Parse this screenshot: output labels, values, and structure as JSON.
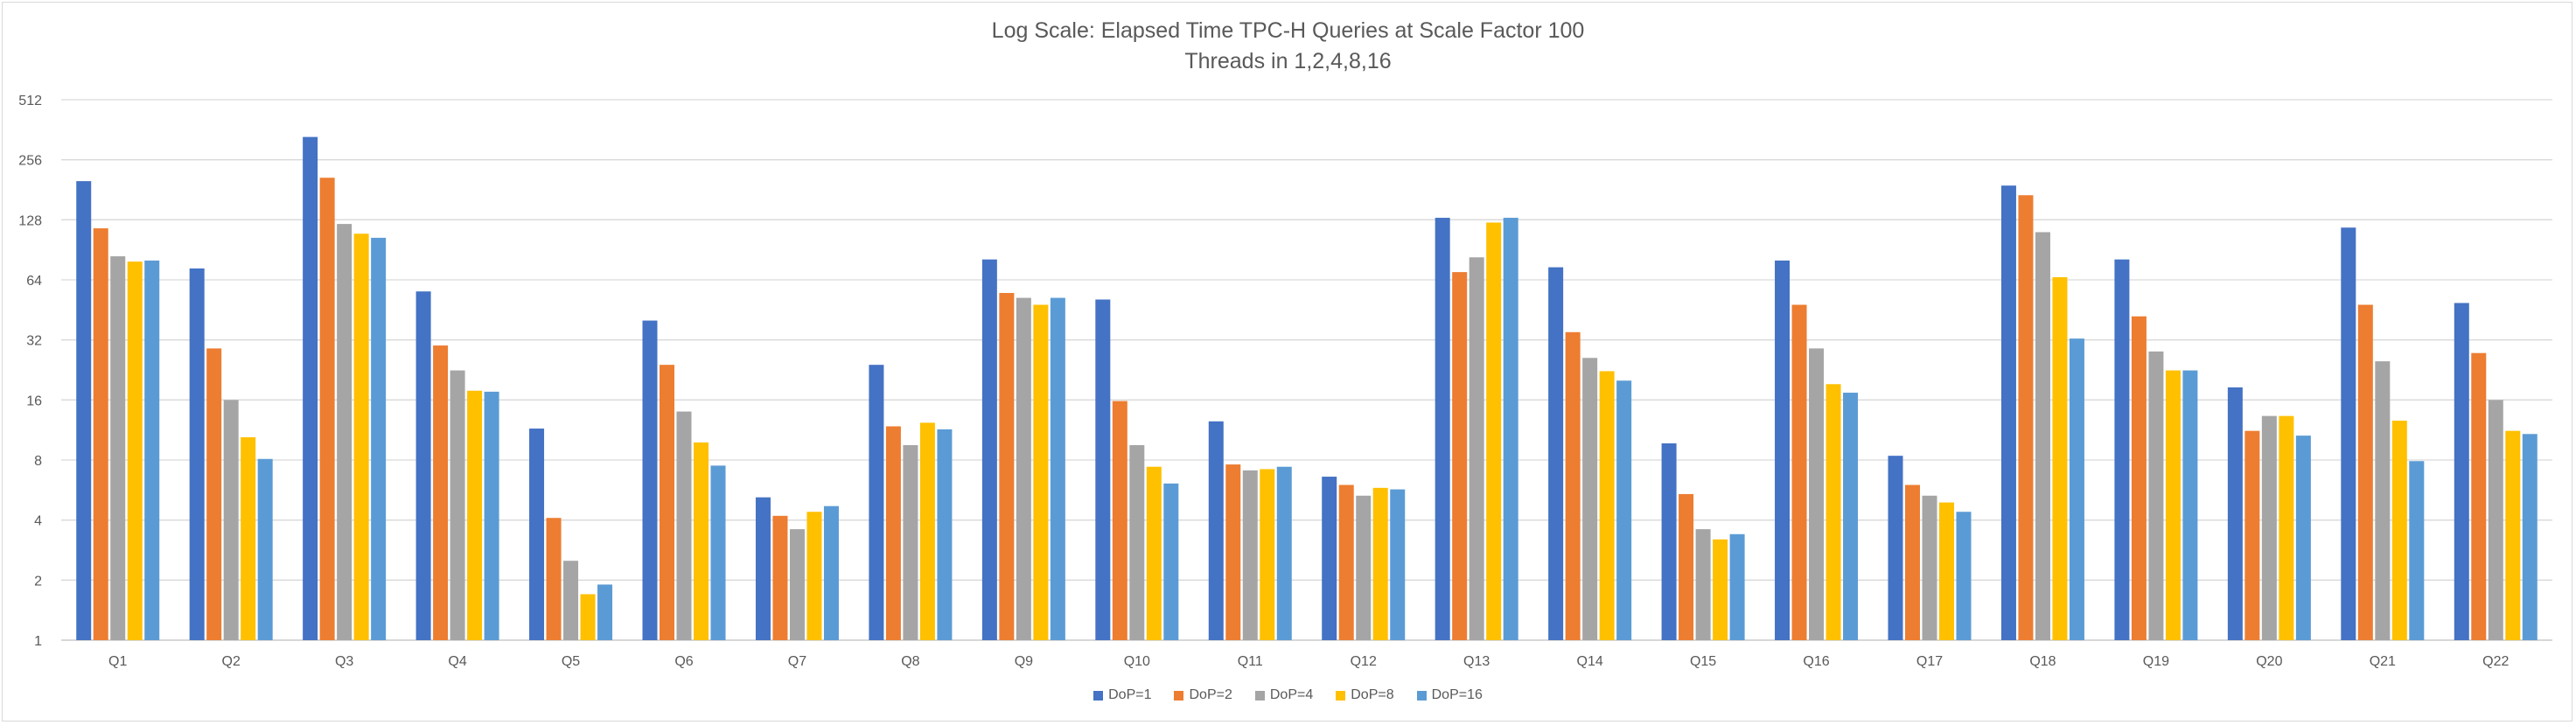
{
  "chart_data": {
    "type": "bar",
    "title": "Log Scale:  Elapsed Time TPC-H Queries at Scale Factor 100",
    "subtitle": "Threads in 1,2,4,8,16",
    "xlabel": "",
    "ylabel": "",
    "yscale": "log2",
    "ylim": [
      1,
      512
    ],
    "yticks": [
      "1",
      "2",
      "4",
      "8",
      "16",
      "32",
      "64",
      "128",
      "256",
      "512"
    ],
    "grid": true,
    "legend_position": "bottom",
    "categories": [
      "Q1",
      "Q2",
      "Q3",
      "Q4",
      "Q5",
      "Q6",
      "Q7",
      "Q8",
      "Q9",
      "Q10",
      "Q11",
      "Q12",
      "Q13",
      "Q14",
      "Q15",
      "Q16",
      "Q17",
      "Q18",
      "Q19",
      "Q20",
      "Q21",
      "Q22"
    ],
    "series": [
      {
        "name": "DoP=1",
        "color": "#4472c4",
        "values": [
          200,
          73,
          333,
          56,
          11.5,
          40,
          5.2,
          24,
          81,
          51,
          12.5,
          6.6,
          131,
          74,
          9.7,
          80,
          8.4,
          190,
          81,
          18.5,
          117,
          49
        ]
      },
      {
        "name": "DoP=2",
        "color": "#ed7d31",
        "values": [
          116,
          29,
          208,
          30,
          4.1,
          24,
          4.2,
          11.8,
          55,
          15.8,
          7.6,
          6.0,
          70,
          35,
          5.4,
          48,
          6.0,
          170,
          42,
          11.2,
          48,
          27.5
        ]
      },
      {
        "name": "DoP=4",
        "color": "#a5a5a5",
        "values": [
          84,
          16,
          122,
          22.5,
          2.5,
          14,
          3.6,
          9.5,
          52,
          9.5,
          7.1,
          5.3,
          83,
          26,
          3.6,
          29,
          5.3,
          111,
          28,
          13.3,
          25,
          16
        ]
      },
      {
        "name": "DoP=8",
        "color": "#ffc000",
        "values": [
          79,
          10.4,
          109,
          17.8,
          1.7,
          9.8,
          4.4,
          12.3,
          48,
          7.4,
          7.2,
          5.8,
          124,
          22.3,
          3.2,
          19.2,
          4.9,
          66,
          22.5,
          13.3,
          12.6,
          11.2
        ]
      },
      {
        "name": "DoP=16",
        "color": "#5b9bd5",
        "values": [
          80,
          8.1,
          104,
          17.6,
          1.9,
          7.5,
          4.7,
          11.4,
          52,
          6.1,
          7.4,
          5.7,
          131,
          20,
          3.4,
          17.4,
          4.4,
          32.5,
          22.5,
          10.6,
          7.9,
          10.8
        ]
      }
    ]
  }
}
